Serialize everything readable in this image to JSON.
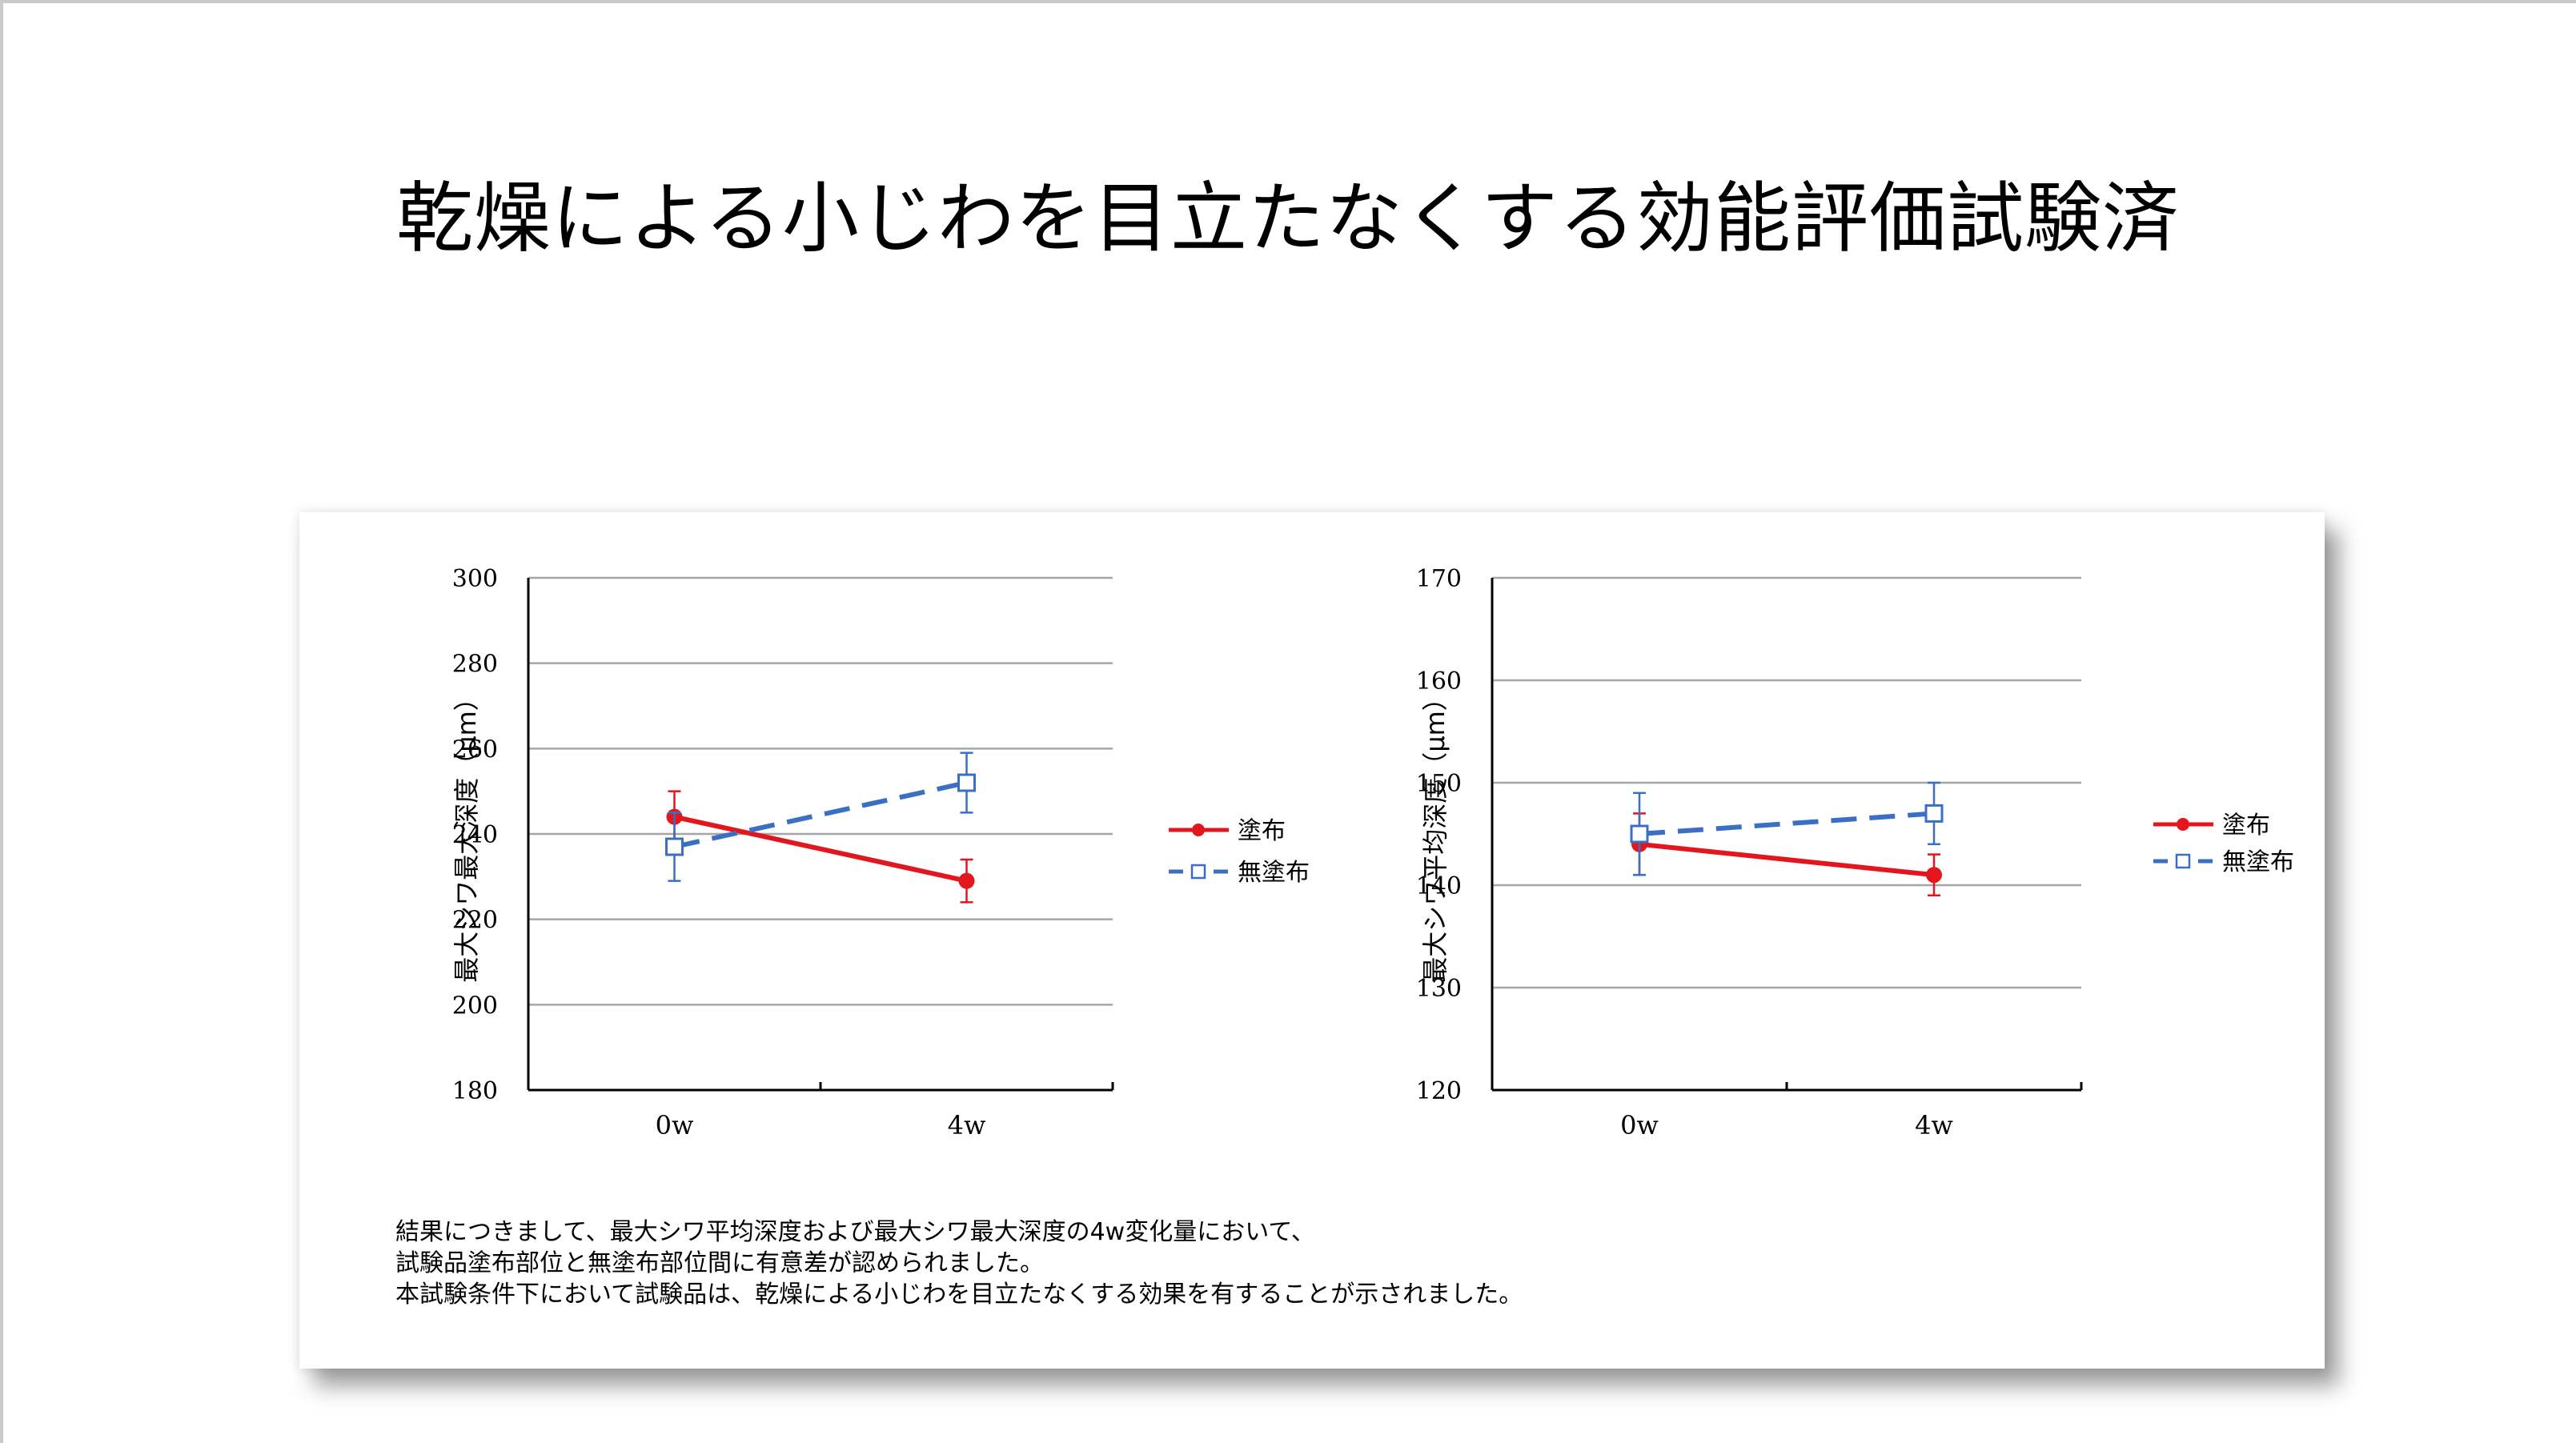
{
  "page": {
    "title": "乾燥による小じわを目立たなくする効能評価試験済"
  },
  "chart_data": [
    {
      "type": "line",
      "title": "",
      "xlabel": "",
      "ylabel": "最大シワ最大深度（µm）",
      "categories": [
        "0w",
        "4w"
      ],
      "ylim": [
        180,
        300
      ],
      "yticks": [
        180,
        200,
        220,
        240,
        260,
        280,
        300
      ],
      "grid": true,
      "legend_position": "right",
      "series": [
        {
          "name": "塗布",
          "values": [
            244,
            229
          ],
          "error": [
            6,
            5
          ],
          "color": "#e3161d",
          "marker": "filled-circle",
          "dash": "solid"
        },
        {
          "name": "無塗布",
          "values": [
            237,
            252
          ],
          "error": [
            8,
            7
          ],
          "color": "#3a6fc4",
          "marker": "open-square",
          "dash": "dashed"
        }
      ]
    },
    {
      "type": "line",
      "title": "",
      "xlabel": "",
      "ylabel": "最大シワ平均深度（µm）",
      "categories": [
        "0w",
        "4w"
      ],
      "ylim": [
        120,
        170
      ],
      "yticks": [
        120,
        130,
        140,
        150,
        160,
        170
      ],
      "grid": true,
      "legend_position": "right",
      "series": [
        {
          "name": "塗布",
          "values": [
            144,
            141
          ],
          "error": [
            3,
            2
          ],
          "color": "#e3161d",
          "marker": "filled-circle",
          "dash": "solid"
        },
        {
          "name": "無塗布",
          "values": [
            145,
            147
          ],
          "error": [
            4,
            3
          ],
          "color": "#3a6fc4",
          "marker": "open-square",
          "dash": "dashed"
        }
      ]
    }
  ],
  "result": {
    "lines": [
      "結果につきまして、最大シワ平均深度および最大シワ最大深度の4w変化量において、",
      "試験品塗布部位と無塗布部位間に有意差が認められました。",
      "本試験条件下において試験品は、乾燥による小じわを目立たなくする効果を有することが示されました。"
    ]
  }
}
